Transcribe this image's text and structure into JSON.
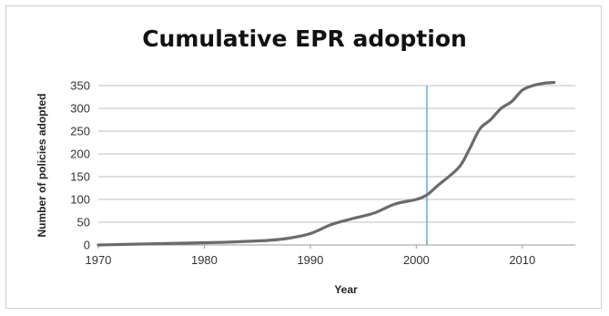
{
  "chart_data": {
    "type": "line",
    "title": "Cumulative EPR adoption",
    "xlabel": "Year",
    "ylabel": "Number of policies adopted",
    "xlim": [
      1970,
      2015
    ],
    "ylim": [
      0,
      350
    ],
    "x_ticks": [
      1970,
      1980,
      1990,
      2000,
      2010
    ],
    "y_ticks": [
      0,
      50,
      100,
      150,
      200,
      250,
      300,
      350
    ],
    "grid": "horizontal",
    "reference_line": {
      "x": 2001,
      "color": "#5b9bd5"
    },
    "series": [
      {
        "color": "#6b6b6b",
        "x": [
          1970,
          1972,
          1974,
          1976,
          1978,
          1980,
          1982,
          1984,
          1986,
          1988,
          1990,
          1992,
          1994,
          1996,
          1998,
          2000,
          2001,
          2002,
          2004,
          2005,
          2006,
          2007,
          2008,
          2009,
          2010,
          2011,
          2012,
          2013
        ],
        "values": [
          0,
          1,
          2,
          3,
          4,
          5,
          6,
          8,
          10,
          15,
          25,
          45,
          58,
          70,
          90,
          100,
          110,
          130,
          170,
          210,
          255,
          275,
          300,
          315,
          340,
          350,
          355,
          357
        ]
      }
    ]
  }
}
